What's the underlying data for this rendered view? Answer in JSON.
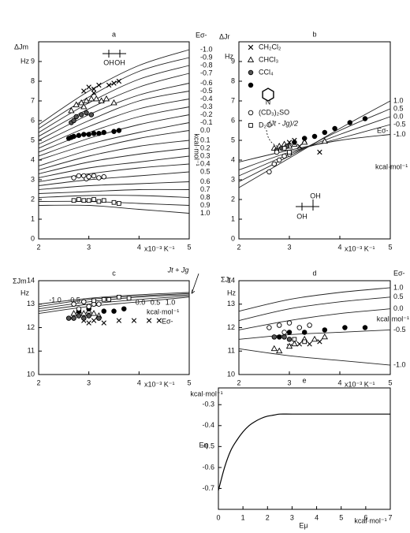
{
  "chart_data": [
    {
      "type": "scatter",
      "title": "a",
      "y_label": "ΔJm",
      "y_unit": "Hz",
      "x_unit": "x10⁻³ K⁻¹",
      "right_label": "Eσ-",
      "right_unit": "kcal·mol⁻¹",
      "structure_labels": [
        "OH",
        "OH"
      ],
      "xlim": [
        2,
        5
      ],
      "xticks": [
        2,
        3,
        4,
        5
      ],
      "ylim": [
        0,
        10
      ],
      "yticks": [
        0,
        1,
        2,
        3,
        4,
        5,
        6,
        7,
        8,
        9
      ],
      "curve_x": [
        2,
        3,
        4,
        5
      ],
      "curves": [
        {
          "label": "-1.0",
          "values": [
            5.8,
            7.5,
            8.8,
            9.6
          ]
        },
        {
          "label": "-0.9",
          "values": [
            5.6,
            7.2,
            8.5,
            9.2
          ]
        },
        {
          "label": "-0.8",
          "values": [
            5.4,
            6.9,
            8.1,
            8.8
          ]
        },
        {
          "label": "-0.7",
          "values": [
            5.2,
            6.6,
            7.7,
            8.4
          ]
        },
        {
          "label": "-0.6",
          "values": [
            5.0,
            6.3,
            7.3,
            7.9
          ]
        },
        {
          "label": "-0.5",
          "values": [
            4.8,
            6.0,
            7.0,
            7.5
          ]
        },
        {
          "label": "-0.4",
          "values": [
            4.6,
            5.7,
            6.6,
            7.1
          ]
        },
        {
          "label": "-0.3",
          "values": [
            4.4,
            5.4,
            6.2,
            6.7
          ]
        },
        {
          "label": "-0.2",
          "values": [
            4.2,
            5.1,
            5.8,
            6.3
          ]
        },
        {
          "label": "-0.1",
          "values": [
            4.0,
            4.8,
            5.4,
            5.9
          ]
        },
        {
          "label": "0.0",
          "values": [
            3.7,
            4.5,
            5.1,
            5.5
          ]
        },
        {
          "label": "0.1",
          "values": [
            3.5,
            4.2,
            4.7,
            5.0
          ]
        },
        {
          "label": "0.2",
          "values": [
            3.3,
            3.9,
            4.3,
            4.6
          ]
        },
        {
          "label": "0.3",
          "values": [
            3.1,
            3.6,
            3.9,
            4.2
          ]
        },
        {
          "label": "0.4",
          "values": [
            2.9,
            3.3,
            3.6,
            3.8
          ]
        },
        {
          "label": "0.5",
          "values": [
            2.7,
            3.0,
            3.2,
            3.4
          ]
        },
        {
          "label": "0.6",
          "values": [
            2.5,
            2.7,
            2.8,
            2.9
          ]
        },
        {
          "label": "0.7",
          "values": [
            2.3,
            2.4,
            2.5,
            2.5
          ]
        },
        {
          "label": "0.8",
          "values": [
            2.1,
            2.2,
            2.2,
            2.1
          ]
        },
        {
          "label": "0.9",
          "values": [
            1.9,
            1.9,
            1.8,
            1.7
          ]
        },
        {
          "label": "1.0",
          "values": [
            1.7,
            1.7,
            1.5,
            1.3
          ]
        }
      ],
      "series": [
        {
          "marker": "cross",
          "x": [
            2.9,
            3.0,
            3.1,
            3.2,
            3.4,
            3.5,
            3.6,
            3.1
          ],
          "values": [
            7.5,
            7.7,
            7.6,
            7.8,
            7.8,
            7.9,
            8.0,
            7.4
          ]
        },
        {
          "marker": "triangle",
          "x": [
            2.65,
            2.75,
            2.85,
            2.95,
            3.05,
            3.15,
            3.25,
            3.35,
            3.5,
            2.9
          ],
          "values": [
            6.5,
            6.8,
            6.9,
            7.0,
            7.1,
            7.1,
            7.0,
            7.1,
            6.9,
            6.7
          ]
        },
        {
          "marker": "dark",
          "x": [
            2.65,
            2.7,
            2.75,
            2.85,
            2.95,
            3.05
          ],
          "values": [
            5.9,
            6.0,
            6.2,
            6.3,
            6.4,
            6.3
          ]
        },
        {
          "marker": "filled",
          "x": [
            2.6,
            2.65,
            2.7,
            2.8,
            2.9,
            3.0,
            3.1,
            3.2,
            3.3,
            3.5,
            3.6
          ],
          "values": [
            5.1,
            5.15,
            5.2,
            5.25,
            5.3,
            5.3,
            5.35,
            5.35,
            5.4,
            5.45,
            5.5
          ]
        },
        {
          "marker": "open",
          "x": [
            2.7,
            2.8,
            2.9,
            2.95,
            3.0,
            3.1,
            3.2,
            3.3
          ],
          "values": [
            3.1,
            3.2,
            3.2,
            3.05,
            3.15,
            3.2,
            3.1,
            3.15
          ]
        },
        {
          "marker": "square",
          "x": [
            2.7,
            2.8,
            2.9,
            3.0,
            3.1,
            3.2,
            3.3,
            3.5,
            3.6
          ],
          "values": [
            1.95,
            2.0,
            1.95,
            1.95,
            2.0,
            1.9,
            1.95,
            1.85,
            1.8
          ]
        }
      ]
    },
    {
      "type": "scatter",
      "title": "b",
      "y_label": "ΔJr",
      "y_unit": "Hz",
      "x_unit": "x10⁻³ K⁻¹",
      "right_label": "Eσ-",
      "right_unit": "kcal·mol⁻¹",
      "annotation": "(Jt - Jg)/2",
      "structure_labels": [
        "OH",
        "OH"
      ],
      "legend_structure_label": "N",
      "xlim": [
        2,
        5
      ],
      "xticks": [
        2,
        3,
        4,
        5
      ],
      "ylim": [
        0,
        10
      ],
      "yticks": [
        0,
        1,
        2,
        3,
        4,
        5,
        6,
        7,
        8,
        9
      ],
      "curve_x": [
        2,
        3,
        4,
        5
      ],
      "curves": [
        {
          "label": "1.0",
          "values": [
            2.6,
            4.1,
            5.6,
            7.0
          ]
        },
        {
          "label": "0.5",
          "values": [
            2.9,
            4.2,
            5.5,
            6.6
          ]
        },
        {
          "label": "0.0",
          "values": [
            3.2,
            4.3,
            5.3,
            6.2
          ]
        },
        {
          "label": "-0.5",
          "values": [
            3.5,
            4.4,
            5.1,
            5.8
          ]
        },
        {
          "label": "-1.0",
          "values": [
            3.9,
            4.5,
            5.0,
            5.3
          ]
        }
      ],
      "series": [
        {
          "name": "CH₂Cl₂",
          "marker": "cross",
          "x": [
            3.0,
            3.1,
            3.2,
            3.3,
            3.6
          ],
          "values": [
            4.9,
            5.0,
            4.7,
            5.0,
            4.4
          ]
        },
        {
          "name": "CHCl₃",
          "marker": "triangle",
          "x": [
            2.7,
            2.8,
            2.9,
            3.0,
            3.1,
            3.3,
            3.7
          ],
          "values": [
            4.6,
            4.7,
            4.8,
            4.7,
            4.8,
            4.9,
            4.95
          ]
        },
        {
          "name": "CCl₄",
          "marker": "dark",
          "x": [
            2.75,
            2.85,
            2.95
          ],
          "values": [
            4.5,
            4.6,
            4.7
          ]
        },
        {
          "name": null,
          "marker": "filled",
          "x": [
            3.1,
            3.3,
            3.5,
            3.7,
            3.9,
            4.2,
            4.5
          ],
          "values": [
            4.9,
            5.1,
            5.2,
            5.4,
            5.6,
            5.9,
            6.1
          ]
        },
        {
          "name": "(CD₃)₂SO",
          "marker": "open",
          "x": [
            2.6,
            2.7,
            2.8,
            2.9,
            3.0,
            2.75
          ],
          "values": [
            3.4,
            3.8,
            4.0,
            4.2,
            4.3,
            4.4
          ]
        },
        {
          "name": "D₂O",
          "marker": "square",
          "x": [
            2.9,
            3.0
          ],
          "values": [
            4.6,
            4.4
          ]
        }
      ]
    },
    {
      "type": "scatter",
      "title": "c",
      "y_label": "ΣJm",
      "y_unit": "Hz",
      "x_unit": "x10⁻³ K⁻¹",
      "right_label": "Eσ-",
      "right_unit": "kcal·mol⁻¹",
      "annotation": "Jt + Jg",
      "xlim": [
        2,
        5
      ],
      "xticks": [
        2,
        3,
        4,
        5
      ],
      "ylim": [
        10,
        14
      ],
      "yticks": [
        10,
        11,
        12,
        13,
        14
      ],
      "curve_x": [
        2,
        3,
        4,
        5
      ],
      "curves": [
        {
          "label": "-1.0",
          "values": [
            13.0,
            13.25,
            13.4,
            13.5
          ]
        },
        {
          "label": "-0.5",
          "values": [
            12.9,
            13.2,
            13.35,
            13.45
          ]
        },
        {
          "label": "0.0",
          "values": [
            12.8,
            13.1,
            13.3,
            13.4
          ]
        },
        {
          "label": "0.5",
          "values": [
            12.7,
            13.0,
            13.2,
            13.35
          ]
        },
        {
          "label": "1.0",
          "values": [
            12.6,
            12.9,
            13.1,
            13.3
          ]
        }
      ],
      "series": [
        {
          "marker": "cross",
          "x": [
            2.9,
            3.0,
            3.1,
            3.3,
            3.6,
            3.9,
            4.2,
            4.4
          ],
          "values": [
            12.3,
            12.2,
            12.3,
            12.2,
            12.3,
            12.3,
            12.3,
            12.3
          ]
        },
        {
          "marker": "triangle",
          "x": [
            2.7,
            2.8,
            2.9,
            3.0,
            3.1,
            3.2
          ],
          "values": [
            12.6,
            12.7,
            12.6,
            12.7,
            12.6,
            12.5
          ]
        },
        {
          "marker": "dark",
          "x": [
            2.6,
            2.7,
            2.8,
            2.9,
            3.0,
            3.2
          ],
          "values": [
            12.4,
            12.4,
            12.5,
            12.4,
            12.5,
            12.4
          ]
        },
        {
          "marker": "filled",
          "x": [
            2.8,
            3.0,
            3.3,
            3.5,
            3.7
          ],
          "values": [
            12.7,
            12.8,
            12.7,
            12.7,
            12.8
          ]
        },
        {
          "marker": "open",
          "x": [
            2.7,
            2.8,
            2.9,
            3.0,
            3.1,
            3.2
          ],
          "values": [
            13.0,
            12.8,
            13.1,
            12.9,
            13.0,
            13.0
          ]
        },
        {
          "marker": "square",
          "x": [
            3.1,
            3.3,
            3.4,
            3.6,
            3.8
          ],
          "values": [
            13.15,
            13.2,
            13.2,
            13.3,
            13.25
          ]
        }
      ]
    },
    {
      "type": "scatter",
      "title": "d",
      "y_label": "ΣJr",
      "y_unit": "Hz",
      "x_unit": "x10⁻³ K⁻¹",
      "right_label": "Eσ-",
      "right_unit": "kcal·mol⁻¹",
      "xlim": [
        2,
        5
      ],
      "xticks": [
        2,
        3,
        4,
        5
      ],
      "ylim": [
        10,
        14
      ],
      "yticks": [
        10,
        11,
        12,
        13,
        14
      ],
      "curve_x": [
        2,
        3,
        4,
        5
      ],
      "curves": [
        {
          "label": "1.0",
          "values": [
            12.7,
            13.2,
            13.5,
            13.7
          ]
        },
        {
          "label": "0.5",
          "values": [
            12.3,
            12.8,
            13.1,
            13.3
          ]
        },
        {
          "label": "0.0",
          "values": [
            11.9,
            12.3,
            12.6,
            12.8
          ]
        },
        {
          "label": "-0.5",
          "values": [
            11.5,
            11.7,
            11.8,
            11.9
          ]
        },
        {
          "label": "-1.0",
          "values": [
            11.1,
            10.8,
            10.6,
            10.4
          ]
        }
      ],
      "series": [
        {
          "marker": "cross",
          "x": [
            3.0,
            3.2,
            3.4,
            3.6
          ],
          "values": [
            11.2,
            11.3,
            11.3,
            11.4
          ]
        },
        {
          "marker": "triangle",
          "x": [
            2.7,
            2.8,
            3.0,
            3.1,
            3.3,
            3.5,
            3.7
          ],
          "values": [
            11.1,
            11.0,
            11.2,
            11.3,
            11.5,
            11.5,
            11.6
          ]
        },
        {
          "marker": "dark",
          "x": [
            2.7,
            2.9,
            3.0
          ],
          "values": [
            11.6,
            11.6,
            11.5
          ]
        },
        {
          "marker": "filled",
          "x": [
            2.8,
            3.0,
            3.3,
            3.7,
            4.1,
            4.5
          ],
          "values": [
            11.6,
            11.8,
            11.8,
            11.9,
            12.0,
            12.0
          ]
        },
        {
          "marker": "open",
          "x": [
            2.6,
            2.8,
            2.9,
            3.0,
            3.2,
            3.4
          ],
          "values": [
            12.0,
            12.1,
            11.8,
            12.2,
            12.0,
            12.1
          ]
        },
        {
          "marker": "square",
          "x": [
            3.1,
            3.3
          ],
          "values": [
            11.5,
            11.4
          ]
        }
      ]
    },
    {
      "type": "line",
      "title": "e",
      "y_label": "Eη",
      "y_unit": "kcal·mol⁻¹",
      "x_label": "Eμ",
      "x_unit": "kcal·mol⁻¹",
      "xlim": [
        0,
        7
      ],
      "xticks": [
        0,
        1,
        2,
        3,
        4,
        5,
        6,
        7
      ],
      "ylim": [
        -0.8,
        -0.22
      ],
      "yticks": [
        -0.3,
        -0.4,
        -0.5,
        -0.6,
        -0.7
      ],
      "x": [
        0,
        0.25,
        0.5,
        0.75,
        1,
        1.25,
        1.5,
        1.75,
        2,
        2.25,
        2.5,
        3,
        4,
        5,
        6,
        7
      ],
      "values": [
        -0.71,
        -0.6,
        -0.52,
        -0.47,
        -0.43,
        -0.4,
        -0.38,
        -0.365,
        -0.355,
        -0.35,
        -0.345,
        -0.345,
        -0.345,
        -0.345,
        -0.345,
        -0.345
      ]
    }
  ]
}
